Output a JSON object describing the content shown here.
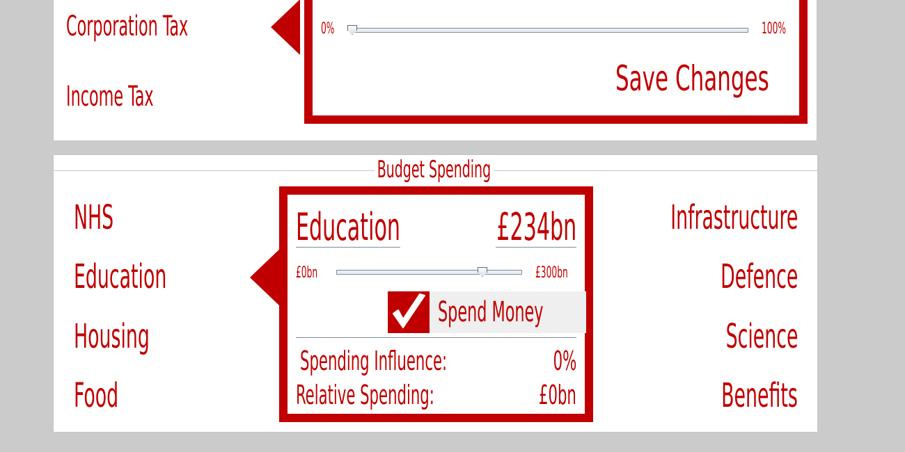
{
  "tax": {
    "items": [
      {
        "label": "Corporation Tax"
      },
      {
        "label": "Income Tax"
      }
    ],
    "slider_min_label": "0%",
    "slider_max_label": "100%",
    "slider_value_fraction": 0.0,
    "save_label": "Save Changes"
  },
  "budget": {
    "title": "Budget Spending",
    "left_items": [
      {
        "label": "NHS"
      },
      {
        "label": "Education"
      },
      {
        "label": "Housing"
      },
      {
        "label": "Food"
      }
    ],
    "right_items": [
      {
        "label": "Infrastructure"
      },
      {
        "label": "Defence"
      },
      {
        "label": "Science"
      },
      {
        "label": "Benefits"
      }
    ],
    "selected": {
      "name": "Education",
      "amount": "£234bn",
      "slider_min_label": "£0bn",
      "slider_max_label": "£300bn",
      "slider_value": 234,
      "spend_toggle_label": "Spend Money",
      "spend_toggle_checked": true,
      "influence_label": "Spending Influence:",
      "influence_value": "0%",
      "relative_label": "Relative Spending:",
      "relative_value": "£0bn"
    }
  },
  "colors": {
    "accent": "#c00000",
    "panel": "#ffffff",
    "background": "#cbcbcb"
  },
  "icons": {
    "check": "check-icon"
  }
}
